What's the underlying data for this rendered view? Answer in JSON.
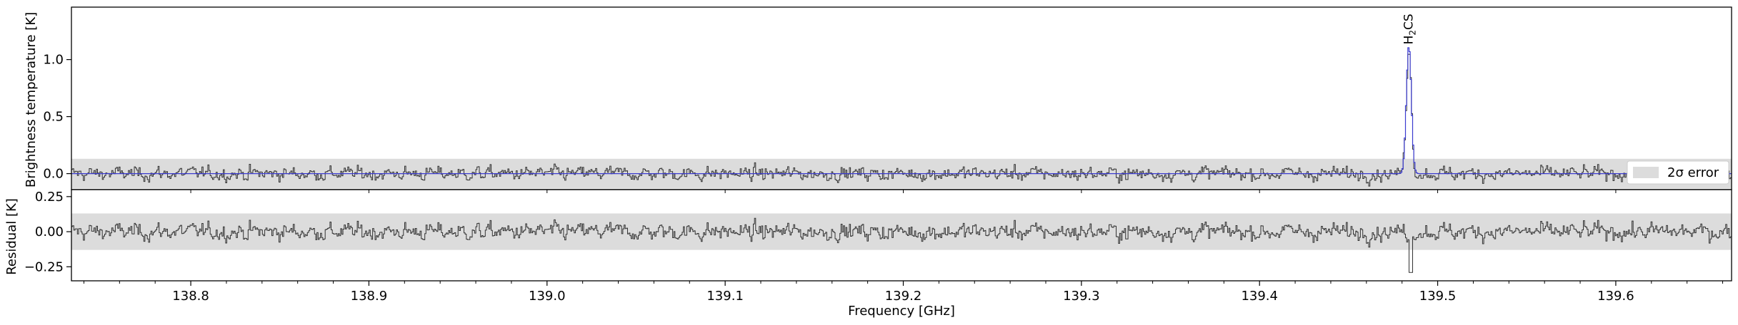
{
  "chart_data": [
    {
      "type": "line",
      "panel": "spectrum",
      "ylabel": "Brightness temperature [K]",
      "xlim": [
        138.733,
        139.665
      ],
      "ylim": [
        -0.14,
        1.46
      ],
      "y_ticks": [
        0.0,
        0.5,
        1.0
      ],
      "y_tick_labels": [
        "0.0",
        "0.5",
        "1.0"
      ],
      "error_band": [
        -0.13,
        0.13
      ],
      "legend": {
        "label": "2σ error",
        "placement": "lower-right"
      },
      "annotations": [
        {
          "text": "H2CS",
          "x": 139.4835
        }
      ],
      "series": [
        {
          "name": "",
          "role": "observed",
          "color": "#333333",
          "noise_sd": 0.05
        },
        {
          "name": "",
          "role": "model",
          "color": "#3b3bd0",
          "lines": [
            {
              "x": 139.4835,
              "peak": 1.12,
              "width": 0.0014
            }
          ]
        }
      ]
    },
    {
      "type": "line",
      "panel": "residual",
      "ylabel": "Residual [K]",
      "xlabel": "Frequency [GHz]",
      "xlim": [
        138.733,
        139.665
      ],
      "ylim": [
        -0.35,
        0.3
      ],
      "y_ticks": [
        -0.25,
        0.0,
        0.25
      ],
      "y_tick_labels": [
        "−0.25",
        "0.00",
        "0.25"
      ],
      "x_ticks": [
        138.8,
        138.9,
        139.0,
        139.1,
        139.2,
        139.3,
        139.4,
        139.5,
        139.6
      ],
      "x_tick_labels": [
        "138.8",
        "138.9",
        "139.0",
        "139.1",
        "139.2",
        "139.3",
        "139.4",
        "139.5",
        "139.6"
      ],
      "error_band": [
        -0.13,
        0.13
      ],
      "series": [
        {
          "name": "",
          "role": "residual",
          "color": "#333333",
          "noise_sd": 0.05,
          "dip": {
            "x": 139.4845,
            "value": -0.29
          }
        }
      ]
    }
  ],
  "colors": {
    "band": "#dcdcdc",
    "data": "#333333",
    "model": "#3b3bd0",
    "axis": "#000000"
  }
}
